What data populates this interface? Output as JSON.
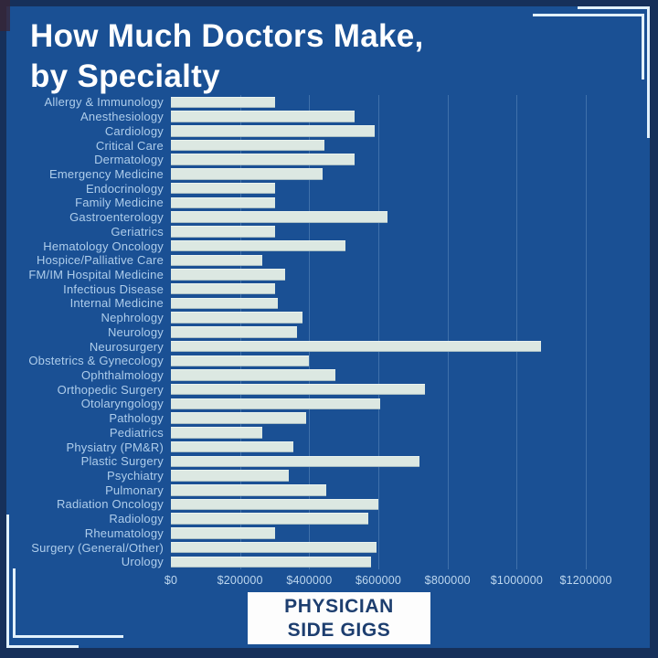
{
  "title": {
    "line1": "How Much Doctors Make,",
    "line2": "by Specialty"
  },
  "badge": {
    "line1": "PHYSICIAN",
    "line2": "SIDE GIGS"
  },
  "colors": {
    "background": "#1a5094",
    "frame_edge": "#16305a",
    "bar_fill": "#dce8e2",
    "label_text": "#aecdeb",
    "axis_text": "#bdd7ef",
    "title_text": "#ffffff",
    "gridline": "rgba(190,220,245,0.24)",
    "corner_bracket": "#e2f1fc",
    "badge_background": "#fdfdfd",
    "badge_text": "#1d3e6f"
  },
  "chart_data": {
    "type": "bar",
    "orientation": "horizontal",
    "title": "How Much Doctors Make, by Specialty",
    "xlabel": "",
    "ylabel": "",
    "grid": true,
    "legend": false,
    "axis_max": 1250000,
    "xlim": [
      0,
      1250000
    ],
    "tick_values": [
      0,
      200000,
      400000,
      600000,
      800000,
      1000000,
      1200000
    ],
    "tick_labels": [
      "$0",
      "$200000",
      "$400000",
      "$600000",
      "$800000",
      "$1000000",
      "$1200000"
    ],
    "categories": [
      "Allergy & Immunology",
      "Anesthesiology",
      "Cardiology",
      "Critical Care",
      "Dermatology",
      "Emergency Medicine",
      "Endocrinology",
      "Family Medicine",
      "Gastroenterology",
      "Geriatrics",
      "Hematology Oncology",
      "Hospice/Palliative Care",
      "FM/IM Hospital Medicine",
      "Infectious Disease",
      "Internal Medicine",
      "Nephrology",
      "Neurology",
      "Neurosurgery",
      "Obstetrics & Gynecology",
      "Ophthalmology",
      "Orthopedic Surgery",
      "Otolaryngology",
      "Pathology",
      "Pediatrics",
      "Physiatry (PM&R)",
      "Plastic Surgery",
      "Psychiatry",
      "Pulmonary",
      "Radiation Oncology",
      "Radiology",
      "Rheumatology",
      "Surgery (General/Other)",
      "Urology"
    ],
    "values": [
      300000,
      530000,
      590000,
      445000,
      530000,
      440000,
      300000,
      300000,
      625000,
      300000,
      505000,
      265000,
      330000,
      300000,
      310000,
      380000,
      365000,
      1070000,
      400000,
      475000,
      735000,
      605000,
      390000,
      265000,
      355000,
      720000,
      340000,
      450000,
      600000,
      570000,
      300000,
      595000,
      580000
    ]
  }
}
